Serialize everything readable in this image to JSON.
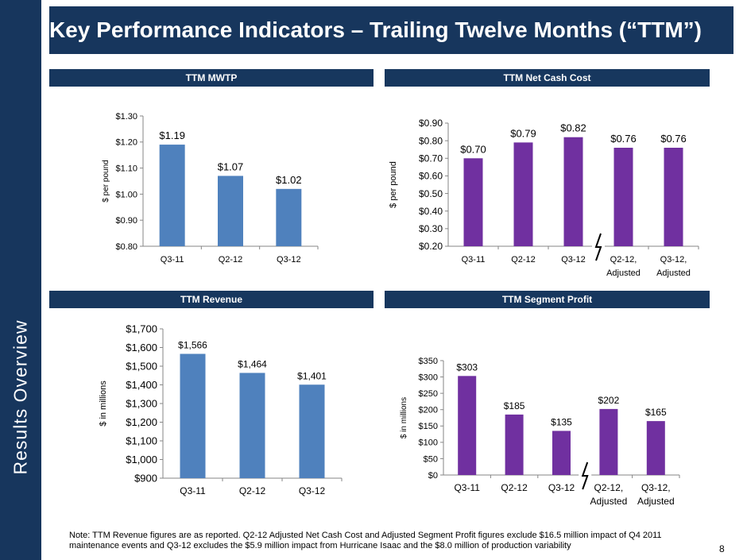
{
  "title": "Key Performance Indicators – Trailing Twelve Months (“TTM”)",
  "sidebar_label": "Results Overview",
  "colors": {
    "navy": "#17365d",
    "blue_bar": "#4f81bd",
    "purple_bar": "#7030a0"
  },
  "panels": {
    "mwtp": {
      "header": "TTM MWTP"
    },
    "net_cash_cost": {
      "header": "TTM Net Cash Cost"
    },
    "revenue": {
      "header": "TTM Revenue"
    },
    "segment_profit": {
      "header": "TTM Segment Profit"
    }
  },
  "chart_data": [
    {
      "id": "mwtp",
      "type": "bar",
      "title": "TTM MWTP",
      "categories": [
        "Q3-11",
        "Q2-12",
        "Q3-12"
      ],
      "values": [
        1.19,
        1.07,
        1.02
      ],
      "data_labels": [
        "$1.19",
        "$1.07",
        "$1.02"
      ],
      "ylabel": "$ per pound",
      "ylim": [
        0.8,
        1.3
      ],
      "yticks": [
        0.8,
        0.9,
        1.0,
        1.1,
        1.2,
        1.3
      ],
      "ytick_labels": [
        "$0.80",
        "$0.90",
        "$1.00",
        "$1.10",
        "$1.20",
        "$1.30"
      ],
      "color": "#4f81bd",
      "grid": false
    },
    {
      "id": "net_cash_cost",
      "type": "bar",
      "title": "TTM Net Cash Cost",
      "categories": [
        "Q3-11",
        "Q2-12",
        "Q3-12",
        "Q2-12, Adjusted",
        "Q3-12, Adjusted"
      ],
      "values": [
        0.7,
        0.79,
        0.82,
        0.76,
        0.76
      ],
      "data_labels": [
        "$0.70",
        "$0.79",
        "$0.82",
        "$0.76",
        "$0.76"
      ],
      "ylabel": "$ per pound",
      "ylim": [
        0.2,
        0.9
      ],
      "yticks": [
        0.2,
        0.3,
        0.4,
        0.5,
        0.6,
        0.7,
        0.8,
        0.9
      ],
      "ytick_labels": [
        "$0.20",
        "$0.30",
        "$0.40",
        "$0.50",
        "$0.60",
        "$0.70",
        "$0.80",
        "$0.90"
      ],
      "color": "#7030a0",
      "axis_break_after_index": 2,
      "grid": false
    },
    {
      "id": "revenue",
      "type": "bar",
      "title": "TTM Revenue",
      "categories": [
        "Q3-11",
        "Q2-12",
        "Q3-12"
      ],
      "values": [
        1566,
        1464,
        1401
      ],
      "data_labels": [
        "$1,566",
        "$1,464",
        "$1,401"
      ],
      "ylabel": "$ in millions",
      "ylim": [
        900,
        1700
      ],
      "yticks": [
        900,
        1000,
        1100,
        1200,
        1300,
        1400,
        1500,
        1600,
        1700
      ],
      "ytick_labels": [
        "$900",
        "$1,000",
        "$1,100",
        "$1,200",
        "$1,300",
        "$1,400",
        "$1,500",
        "$1,600",
        "$1,700"
      ],
      "color": "#4f81bd",
      "grid": false
    },
    {
      "id": "segment_profit",
      "type": "bar",
      "title": "TTM Segment Profit",
      "categories": [
        "Q3-11",
        "Q2-12",
        "Q3-12",
        "Q2-12, Adjusted",
        "Q3-12, Adjusted"
      ],
      "values": [
        303,
        185,
        135,
        202,
        165
      ],
      "data_labels": [
        "$303",
        "$185",
        "$135",
        "$202",
        "$165"
      ],
      "ylabel": "$ in millions",
      "ylim": [
        0,
        350
      ],
      "yticks": [
        0,
        50,
        100,
        150,
        200,
        250,
        300,
        350
      ],
      "ytick_labels": [
        "$0",
        "$50",
        "$100",
        "$150",
        "$200",
        "$250",
        "$300",
        "$350"
      ],
      "color": "#7030a0",
      "axis_break_after_index": 2,
      "grid": false
    }
  ],
  "footnote": "Note: TTM Revenue figures are as reported. Q2-12 Adjusted Net Cash Cost and Adjusted Segment Profit figures exclude $16.5 million impact of Q4 2011 maintenance events and Q3-12 excludes the $5.9 million impact from Hurricane Isaac and the $8.0 million of production variability",
  "page_number": "8"
}
